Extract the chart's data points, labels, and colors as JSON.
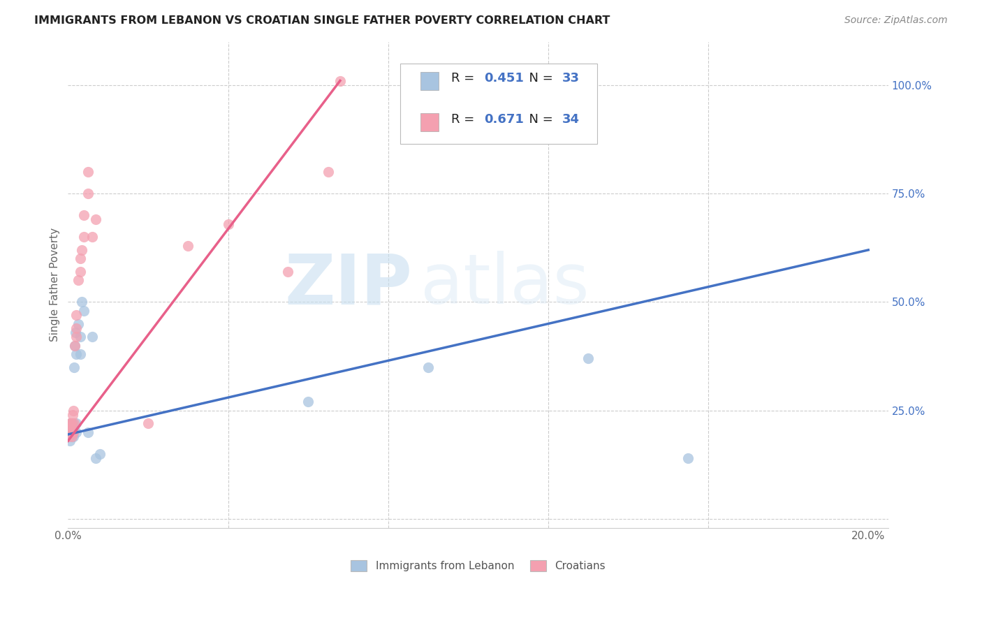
{
  "title": "IMMIGRANTS FROM LEBANON VS CROATIAN SINGLE FATHER POVERTY CORRELATION CHART",
  "source": "Source: ZipAtlas.com",
  "ylabel": "Single Father Poverty",
  "xlim": [
    0.0,
    0.205
  ],
  "ylim": [
    -0.02,
    1.1
  ],
  "xticks": [
    0.0,
    0.04,
    0.08,
    0.12,
    0.16,
    0.2
  ],
  "xtick_labels": [
    "0.0%",
    "",
    "",
    "",
    "",
    "20.0%"
  ],
  "yticks_right": [
    0.0,
    0.25,
    0.5,
    0.75,
    1.0
  ],
  "ytick_labels_right": [
    "",
    "25.0%",
    "50.0%",
    "75.0%",
    "100.0%"
  ],
  "lebanon_R": 0.451,
  "lebanon_N": 33,
  "croatian_R": 0.671,
  "croatian_N": 34,
  "lebanon_color": "#a8c4e0",
  "croatian_color": "#f4a0b0",
  "lebanon_line_color": "#4472c4",
  "croatian_line_color": "#e8608a",
  "watermark_zip": "ZIP",
  "watermark_atlas": "atlas",
  "legend_label_1": "Immigrants from Lebanon",
  "legend_label_2": "Croatians",
  "lebanon_x": [
    0.0002,
    0.0003,
    0.0004,
    0.0005,
    0.0006,
    0.0006,
    0.0007,
    0.0008,
    0.0009,
    0.001,
    0.001,
    0.0012,
    0.0013,
    0.0014,
    0.0015,
    0.0016,
    0.0018,
    0.002,
    0.002,
    0.002,
    0.0025,
    0.003,
    0.003,
    0.0035,
    0.004,
    0.005,
    0.006,
    0.007,
    0.008,
    0.06,
    0.09,
    0.13,
    0.155
  ],
  "lebanon_y": [
    0.19,
    0.2,
    0.18,
    0.21,
    0.19,
    0.2,
    0.22,
    0.21,
    0.2,
    0.19,
    0.2,
    0.22,
    0.21,
    0.19,
    0.35,
    0.4,
    0.43,
    0.38,
    0.2,
    0.22,
    0.45,
    0.42,
    0.38,
    0.5,
    0.48,
    0.2,
    0.42,
    0.14,
    0.15,
    0.27,
    0.35,
    0.37,
    0.14
  ],
  "croatian_x": [
    0.0002,
    0.0003,
    0.0004,
    0.0005,
    0.0006,
    0.0007,
    0.0008,
    0.0009,
    0.001,
    0.001,
    0.0012,
    0.0013,
    0.0014,
    0.0015,
    0.0016,
    0.002,
    0.002,
    0.002,
    0.0025,
    0.003,
    0.003,
    0.0035,
    0.004,
    0.004,
    0.005,
    0.005,
    0.006,
    0.007,
    0.02,
    0.03,
    0.04,
    0.055,
    0.065,
    0.068
  ],
  "croatian_y": [
    0.19,
    0.21,
    0.2,
    0.22,
    0.2,
    0.22,
    0.21,
    0.19,
    0.22,
    0.2,
    0.24,
    0.2,
    0.25,
    0.22,
    0.4,
    0.42,
    0.44,
    0.47,
    0.55,
    0.57,
    0.6,
    0.62,
    0.65,
    0.7,
    0.75,
    0.8,
    0.65,
    0.69,
    0.22,
    0.63,
    0.68,
    0.57,
    0.8,
    1.01
  ],
  "lb_line_x0": 0.0,
  "lb_line_y0": 0.195,
  "lb_line_x1": 0.2,
  "lb_line_y1": 0.62,
  "cr_line_x0": 0.0,
  "cr_line_y0": 0.18,
  "cr_line_x1": 0.068,
  "cr_line_y1": 1.01
}
